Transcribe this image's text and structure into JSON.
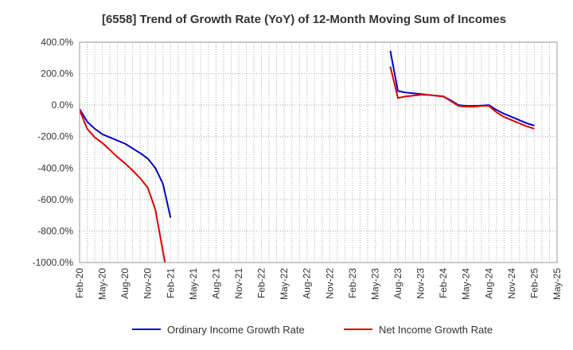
{
  "chart_data": {
    "type": "line",
    "title": "[6558]  Trend of Growth Rate (YoY) of 12-Month Moving Sum of Incomes",
    "xlabel": "",
    "ylabel": "",
    "ylim": [
      -1000,
      400
    ],
    "yticks": [
      400,
      200,
      0,
      -200,
      -400,
      -600,
      -800,
      -1000
    ],
    "ytick_labels": [
      "400.0%",
      "200.0%",
      "0.0%",
      "-200.0%",
      "-400.0%",
      "-600.0%",
      "-800.0%",
      "-1000.0%"
    ],
    "x_range": [
      "2020-02",
      "2025-05"
    ],
    "xtick_labels": [
      "Feb-20",
      "May-20",
      "Aug-20",
      "Nov-20",
      "Feb-21",
      "May-21",
      "Aug-21",
      "Nov-21",
      "Feb-22",
      "May-22",
      "Aug-22",
      "Nov-22",
      "Feb-23",
      "May-23",
      "Aug-23",
      "Nov-23",
      "Feb-24",
      "May-24",
      "Aug-24",
      "Nov-24",
      "Feb-25",
      "May-25"
    ],
    "grid": true,
    "legend_position": "bottom",
    "series": [
      {
        "name": "Ordinary Income Growth Rate",
        "color": "#0000cc",
        "segments": [
          [
            [
              "2020-02",
              -25
            ],
            [
              "2020-03",
              -105
            ],
            [
              "2020-04",
              -150
            ],
            [
              "2020-05",
              -185
            ],
            [
              "2020-06",
              -205
            ],
            [
              "2020-07",
              -225
            ],
            [
              "2020-08",
              -245
            ],
            [
              "2020-09",
              -275
            ],
            [
              "2020-10",
              -305
            ],
            [
              "2020-11",
              -340
            ],
            [
              "2020-12",
              -400
            ],
            [
              "2021-01",
              -500
            ],
            [
              "2021-02",
              -715
            ]
          ],
          [
            [
              "2023-07",
              345
            ],
            [
              "2023-08",
              90
            ],
            [
              "2023-09",
              80
            ],
            [
              "2023-10",
              75
            ],
            [
              "2023-11",
              70
            ],
            [
              "2023-12",
              65
            ],
            [
              "2024-01",
              60
            ],
            [
              "2024-02",
              55
            ],
            [
              "2024-03",
              30
            ],
            [
              "2024-04",
              0
            ],
            [
              "2024-05",
              -5
            ],
            [
              "2024-06",
              -5
            ],
            [
              "2024-07",
              -3
            ],
            [
              "2024-08",
              0
            ],
            [
              "2024-09",
              -30
            ],
            [
              "2024-10",
              -55
            ],
            [
              "2024-11",
              -75
            ],
            [
              "2024-12",
              -95
            ],
            [
              "2025-01",
              -115
            ],
            [
              "2025-02",
              -130
            ]
          ]
        ]
      },
      {
        "name": "Net Income Growth Rate",
        "color": "#dd0000",
        "segments": [
          [
            [
              "2020-02",
              -30
            ],
            [
              "2020-03",
              -150
            ],
            [
              "2020-04",
              -205
            ],
            [
              "2020-05",
              -240
            ],
            [
              "2020-06",
              -285
            ],
            [
              "2020-07",
              -330
            ],
            [
              "2020-08",
              -370
            ],
            [
              "2020-09",
              -415
            ],
            [
              "2020-10",
              -465
            ],
            [
              "2020-11",
              -525
            ],
            [
              "2020-12",
              -665
            ],
            [
              "2021-01",
              -930
            ],
            [
              "2021-01.3",
              -1010
            ]
          ],
          [
            [
              "2023-07",
              245
            ],
            [
              "2023-08",
              45
            ],
            [
              "2023-09",
              55
            ],
            [
              "2023-10",
              60
            ],
            [
              "2023-11",
              65
            ],
            [
              "2023-12",
              65
            ],
            [
              "2024-01",
              60
            ],
            [
              "2024-02",
              55
            ],
            [
              "2024-03",
              25
            ],
            [
              "2024-04",
              -5
            ],
            [
              "2024-05",
              -10
            ],
            [
              "2024-06",
              -10
            ],
            [
              "2024-07",
              -5
            ],
            [
              "2024-08",
              -5
            ],
            [
              "2024-09",
              -45
            ],
            [
              "2024-10",
              -75
            ],
            [
              "2024-11",
              -95
            ],
            [
              "2024-12",
              -115
            ],
            [
              "2025-01",
              -135
            ],
            [
              "2025-02",
              -150
            ]
          ]
        ]
      }
    ]
  }
}
